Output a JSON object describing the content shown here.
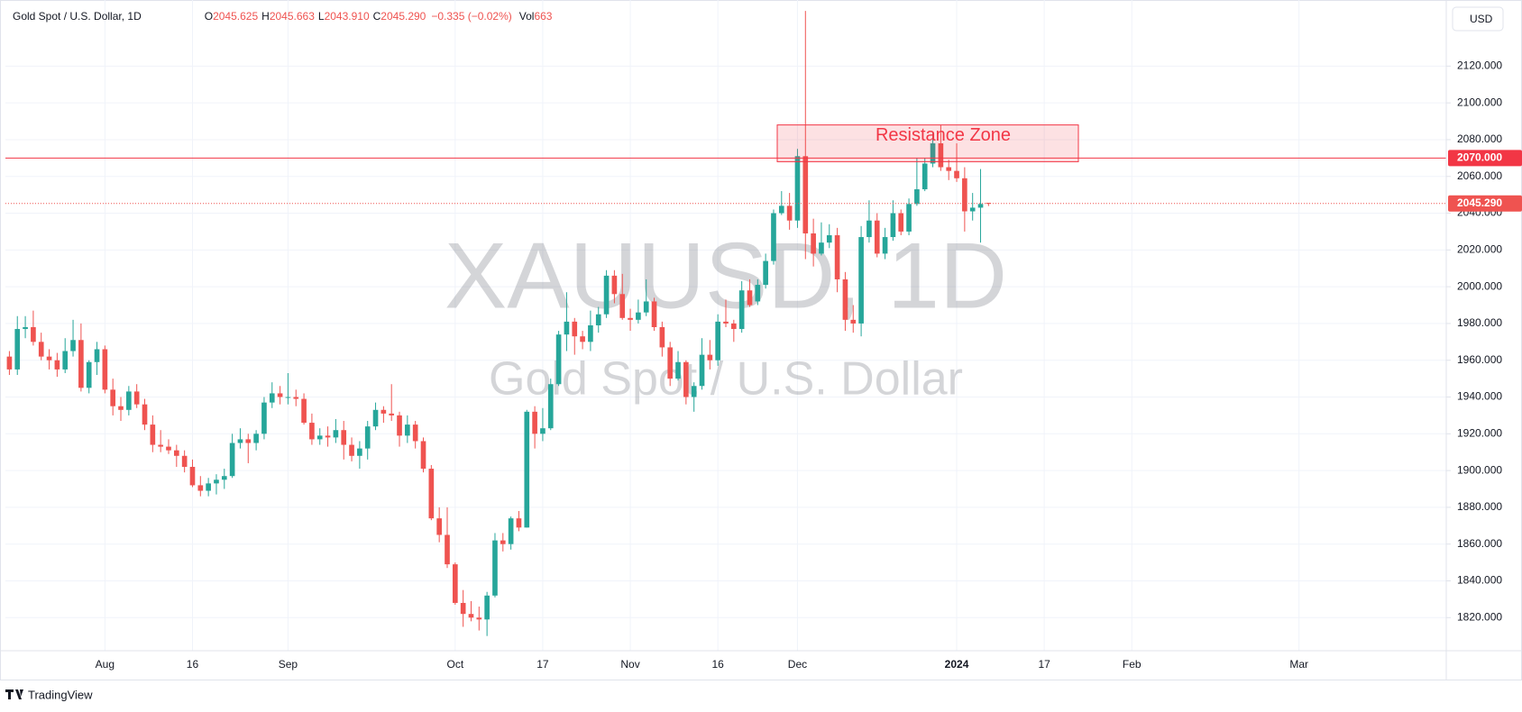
{
  "chart_data": {
    "type": "candlestick",
    "legend": {
      "symbol": "Gold Spot / U.S. Dollar, 1D",
      "fields": [
        {
          "key": "O",
          "value": "2045.625"
        },
        {
          "key": "H",
          "value": "2045.663"
        },
        {
          "key": "L",
          "value": "2043.910"
        },
        {
          "key": "C",
          "value": "2045.290"
        }
      ],
      "change": "−0.335 (−0.02%)",
      "volume": {
        "key": "Vol",
        "value": "663"
      }
    },
    "watermark": {
      "title": "XAUUSD, 1D",
      "subtitle": "Gold Spot / U.S. Dollar"
    },
    "currency": "USD",
    "brand": "TradingView",
    "up_color": "#26a69a",
    "down_color": "#ef5350",
    "grid": true,
    "ylim": [
      1802,
      2154
    ],
    "yticks": [
      {
        "value": 1820,
        "label": "1820.000"
      },
      {
        "value": 1840,
        "label": "1840.000"
      },
      {
        "value": 1860,
        "label": "1860.000"
      },
      {
        "value": 1880,
        "label": "1880.000"
      },
      {
        "value": 1900,
        "label": "1900.000"
      },
      {
        "value": 1920,
        "label": "1920.000"
      },
      {
        "value": 1940,
        "label": "1940.000"
      },
      {
        "value": 1960,
        "label": "1960.000"
      },
      {
        "value": 1980,
        "label": "1980.000"
      },
      {
        "value": 2000,
        "label": "2000.000"
      },
      {
        "value": 2020,
        "label": "2020.000"
      },
      {
        "value": 2040,
        "label": "2040.000"
      },
      {
        "value": 2060,
        "label": "2060.000"
      },
      {
        "value": 2080,
        "label": "2080.000"
      },
      {
        "value": 2100,
        "label": "2100.000"
      },
      {
        "value": 2120,
        "label": "2120.000"
      }
    ],
    "hline": {
      "value": 2070,
      "label": "2070.000",
      "color": "#f23645"
    },
    "last_price": {
      "value": 2045.29,
      "label": "2045.290",
      "color": "#ef5350"
    },
    "resistance_zone": {
      "label": "Resistance Zone",
      "low": 2068,
      "high": 2088,
      "color": "#f23645"
    },
    "categories": [
      null,
      null,
      null,
      null,
      null,
      null,
      null,
      null,
      null,
      null,
      null,
      null,
      "Aug",
      null,
      null,
      null,
      null,
      null,
      null,
      null,
      null,
      null,
      null,
      "16",
      null,
      null,
      null,
      null,
      null,
      null,
      null,
      null,
      null,
      null,
      null,
      "Sep",
      null,
      null,
      null,
      null,
      null,
      null,
      null,
      null,
      null,
      null,
      null,
      null,
      null,
      null,
      null,
      null,
      null,
      null,
      null,
      null,
      "Oct",
      null,
      null,
      null,
      null,
      null,
      null,
      null,
      null,
      null,
      null,
      "17",
      null,
      null,
      null,
      null,
      null,
      null,
      null,
      null,
      null,
      null,
      "Nov",
      null,
      null,
      null,
      null,
      null,
      null,
      null,
      null,
      null,
      null,
      "16",
      null,
      null,
      null,
      null,
      null,
      null,
      null,
      null,
      null,
      "Dec",
      null,
      null,
      null,
      null,
      null,
      null,
      null,
      null,
      null,
      null,
      null,
      null,
      null,
      null,
      null,
      null,
      null,
      null,
      null,
      "2024",
      null,
      null,
      null,
      null,
      null,
      null,
      null,
      null,
      null,
      null,
      "17",
      null,
      null,
      null,
      null,
      null,
      null,
      null,
      null,
      null,
      null,
      "Feb",
      null,
      null,
      null,
      null,
      null,
      null,
      null,
      null,
      null,
      null,
      null,
      null,
      null,
      null,
      null,
      null,
      null,
      null,
      null,
      null,
      "Mar",
      null,
      null,
      null,
      null,
      null,
      null,
      null,
      null,
      null,
      null,
      null,
      null,
      null,
      null,
      null,
      null,
      null,
      null
    ],
    "ohlc": [
      [
        1962,
        1965,
        1952,
        1955
      ],
      [
        1955,
        1984,
        1952,
        1977
      ],
      [
        1977,
        1984,
        1972,
        1978
      ],
      [
        1978,
        1987,
        1968,
        1970
      ],
      [
        1970,
        1975,
        1960,
        1962
      ],
      [
        1962,
        1966,
        1955,
        1960
      ],
      [
        1960,
        1964,
        1951,
        1955
      ],
      [
        1955,
        1972,
        1953,
        1965
      ],
      [
        1965,
        1982,
        1962,
        1971
      ],
      [
        1971,
        1980,
        1943,
        1945
      ],
      [
        1945,
        1960,
        1942,
        1959
      ],
      [
        1959,
        1970,
        1952,
        1966
      ],
      [
        1966,
        1968,
        1942,
        1944
      ],
      [
        1944,
        1950,
        1930,
        1935
      ],
      [
        1935,
        1940,
        1927,
        1933
      ],
      [
        1933,
        1946,
        1930,
        1943
      ],
      [
        1943,
        1947,
        1934,
        1936
      ],
      [
        1936,
        1939,
        1922,
        1925
      ],
      [
        1925,
        1930,
        1910,
        1914
      ],
      [
        1914,
        1922,
        1910,
        1913
      ],
      [
        1913,
        1917,
        1909,
        1911
      ],
      [
        1911,
        1914,
        1902,
        1908
      ],
      [
        1908,
        1911,
        1899,
        1902
      ],
      [
        1902,
        1906,
        1891,
        1892
      ],
      [
        1892,
        1897,
        1886,
        1889
      ],
      [
        1889,
        1896,
        1886,
        1893
      ],
      [
        1893,
        1898,
        1887,
        1895
      ],
      [
        1895,
        1901,
        1890,
        1897
      ],
      [
        1897,
        1920,
        1896,
        1915
      ],
      [
        1915,
        1923,
        1912,
        1917
      ],
      [
        1917,
        1920,
        1904,
        1915
      ],
      [
        1915,
        1922,
        1911,
        1920
      ],
      [
        1920,
        1940,
        1917,
        1937
      ],
      [
        1937,
        1948,
        1934,
        1942
      ],
      [
        1942,
        1946,
        1936,
        1940
      ],
      [
        1940,
        1953,
        1936,
        1940
      ],
      [
        1940,
        1944,
        1935,
        1939
      ],
      [
        1939,
        1942,
        1925,
        1926
      ],
      [
        1926,
        1931,
        1914,
        1917
      ],
      [
        1917,
        1923,
        1914,
        1919
      ],
      [
        1919,
        1924,
        1913,
        1918
      ],
      [
        1918,
        1928,
        1915,
        1922
      ],
      [
        1922,
        1927,
        1906,
        1914
      ],
      [
        1914,
        1918,
        1905,
        1908
      ],
      [
        1908,
        1916,
        1901,
        1912
      ],
      [
        1912,
        1927,
        1906,
        1924
      ],
      [
        1924,
        1937,
        1922,
        1933
      ],
      [
        1933,
        1935,
        1926,
        1931
      ],
      [
        1931,
        1947,
        1927,
        1930
      ],
      [
        1930,
        1932,
        1913,
        1919
      ],
      [
        1919,
        1930,
        1915,
        1925
      ],
      [
        1925,
        1927,
        1912,
        1916
      ],
      [
        1916,
        1918,
        1899,
        1901
      ],
      [
        1901,
        1903,
        1873,
        1874
      ],
      [
        1874,
        1880,
        1861,
        1865
      ],
      [
        1865,
        1880,
        1847,
        1849
      ],
      [
        1849,
        1850,
        1827,
        1828
      ],
      [
        1828,
        1835,
        1815,
        1822
      ],
      [
        1822,
        1829,
        1818,
        1820
      ],
      [
        1820,
        1826,
        1813,
        1819
      ],
      [
        1819,
        1834,
        1810,
        1832
      ],
      [
        1832,
        1866,
        1831,
        1862
      ],
      [
        1862,
        1866,
        1856,
        1860
      ],
      [
        1860,
        1875,
        1857,
        1874
      ],
      [
        1874,
        1878,
        1867,
        1869
      ],
      [
        1869,
        1933,
        1869,
        1932
      ],
      [
        1932,
        1935,
        1912,
        1920
      ],
      [
        1920,
        1934,
        1916,
        1923
      ],
      [
        1923,
        1950,
        1922,
        1947
      ],
      [
        1947,
        1976,
        1946,
        1974
      ],
      [
        1974,
        1997,
        1965,
        1981
      ],
      [
        1981,
        1983,
        1963,
        1973
      ],
      [
        1973,
        1976,
        1966,
        1970
      ],
      [
        1970,
        1987,
        1965,
        1979
      ],
      [
        1979,
        1989,
        1975,
        1985
      ],
      [
        1985,
        2009,
        1983,
        2006
      ],
      [
        2006,
        2009,
        1991,
        1996
      ],
      [
        1996,
        2007,
        1982,
        1983
      ],
      [
        1983,
        1988,
        1976,
        1982
      ],
      [
        1982,
        1993,
        1980,
        1986
      ],
      [
        1986,
        2004,
        1984,
        1992
      ],
      [
        1992,
        1994,
        1976,
        1978
      ],
      [
        1978,
        1981,
        1962,
        1967
      ],
      [
        1967,
        1970,
        1946,
        1950
      ],
      [
        1950,
        1965,
        1949,
        1959
      ],
      [
        1959,
        1960,
        1936,
        1940
      ],
      [
        1940,
        1948,
        1932,
        1946
      ],
      [
        1946,
        1972,
        1944,
        1963
      ],
      [
        1963,
        1971,
        1955,
        1960
      ],
      [
        1960,
        1985,
        1957,
        1981
      ],
      [
        1981,
        1993,
        1978,
        1980
      ],
      [
        1980,
        1982,
        1970,
        1977
      ],
      [
        1977,
        2003,
        1975,
        1998
      ],
      [
        1998,
        2004,
        1989,
        1990
      ],
      [
        1992,
        2004,
        1990,
        2001
      ],
      [
        2001,
        2018,
        1999,
        2014
      ],
      [
        2014,
        2042,
        2012,
        2040
      ],
      [
        2040,
        2052,
        2039,
        2044
      ],
      [
        2044,
        2051,
        2031,
        2036
      ],
      [
        2036,
        2075,
        2032,
        2071
      ],
      [
        2071,
        2150,
        2015,
        2029
      ],
      [
        2029,
        2037,
        2011,
        2018
      ],
      [
        2018,
        2035,
        2017,
        2024
      ],
      [
        2024,
        2034,
        2021,
        2028
      ],
      [
        2028,
        2032,
        1997,
        2004
      ],
      [
        2004,
        2008,
        1976,
        1982
      ],
      [
        1982,
        1990,
        1975,
        1980
      ],
      [
        1980,
        2033,
        1973,
        2027
      ],
      [
        2027,
        2047,
        2024,
        2036
      ],
      [
        2036,
        2040,
        2016,
        2018
      ],
      [
        2018,
        2032,
        2015,
        2027
      ],
      [
        2027,
        2047,
        2025,
        2040
      ],
      [
        2040,
        2042,
        2028,
        2030
      ],
      [
        2030,
        2048,
        2028,
        2045
      ],
      [
        2045,
        2070,
        2044,
        2053
      ],
      [
        2053,
        2070,
        2052,
        2067
      ],
      [
        2067,
        2084,
        2065,
        2078
      ],
      [
        2078,
        2088,
        2063,
        2065
      ],
      [
        2065,
        2069,
        2058,
        2063
      ],
      [
        2063,
        2078,
        2057,
        2059
      ],
      [
        2059,
        2065,
        2030,
        2041
      ],
      [
        2041,
        2051,
        2036,
        2043
      ],
      [
        2043,
        2064,
        2024,
        2045
      ],
      [
        2045.625,
        2045.663,
        2043.91,
        2045.29
      ],
      null,
      null,
      null,
      null,
      null,
      null,
      null,
      null,
      null,
      null,
      null,
      null,
      null,
      null,
      null,
      null,
      null,
      null,
      null,
      null,
      null,
      null,
      null,
      null,
      null,
      null,
      null,
      null,
      null,
      null,
      null,
      null,
      null,
      null,
      null,
      null,
      null,
      null,
      null,
      null,
      null,
      null,
      null,
      null,
      null,
      null,
      null,
      null,
      null,
      null,
      null,
      null,
      null,
      null,
      null,
      null,
      null
    ]
  }
}
